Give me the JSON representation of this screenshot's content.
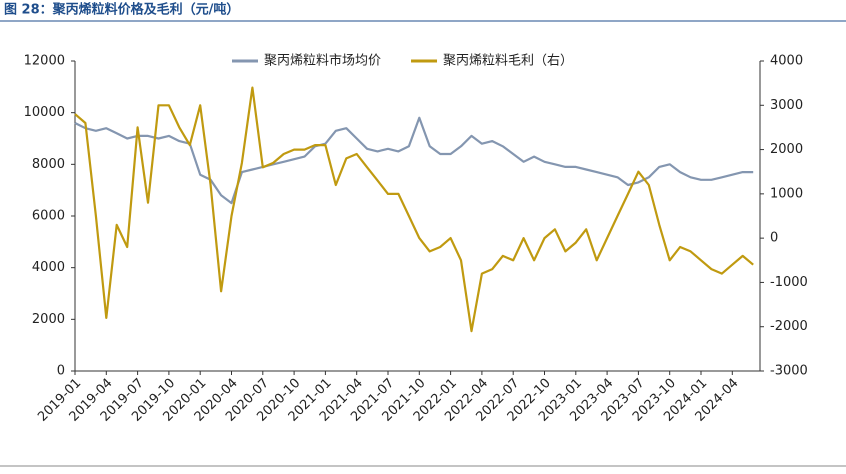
{
  "chart_data": {
    "type": "line",
    "title": "图 28：聚丙烯粒料价格及毛利（元/吨）",
    "x": [
      "2019-01",
      "2019-02",
      "2019-03",
      "2019-04",
      "2019-05",
      "2019-06",
      "2019-07",
      "2019-08",
      "2019-09",
      "2019-10",
      "2019-11",
      "2019-12",
      "2020-01",
      "2020-02",
      "2020-03",
      "2020-04",
      "2020-05",
      "2020-06",
      "2020-07",
      "2020-08",
      "2020-09",
      "2020-10",
      "2020-11",
      "2020-12",
      "2021-01",
      "2021-02",
      "2021-03",
      "2021-04",
      "2021-05",
      "2021-06",
      "2021-07",
      "2021-08",
      "2021-09",
      "2021-10",
      "2021-11",
      "2021-12",
      "2022-01",
      "2022-02",
      "2022-03",
      "2022-04",
      "2022-05",
      "2022-06",
      "2022-07",
      "2022-08",
      "2022-09",
      "2022-10",
      "2022-11",
      "2022-12",
      "2023-01",
      "2023-02",
      "2023-03",
      "2023-04",
      "2023-05",
      "2023-06",
      "2023-07",
      "2023-08",
      "2023-09",
      "2023-10",
      "2023-11",
      "2023-12",
      "2024-01",
      "2024-02",
      "2024-03",
      "2024-04",
      "2024-05",
      "2024-06"
    ],
    "xticks": [
      "2019-01",
      "2019-04",
      "2019-07",
      "2019-10",
      "2020-01",
      "2020-04",
      "2020-07",
      "2020-10",
      "2021-01",
      "2021-04",
      "2021-07",
      "2021-10",
      "2022-01",
      "2022-04",
      "2022-07",
      "2022-10",
      "2023-01",
      "2023-04",
      "2023-07",
      "2023-10",
      "2024-01",
      "2024-04"
    ],
    "series": [
      {
        "name": "聚丙烯粒料市场均价",
        "color": "#8496b0",
        "axis": "y",
        "values": [
          9600,
          9400,
          9300,
          9400,
          9200,
          9000,
          9100,
          9100,
          9000,
          9100,
          8900,
          8800,
          7600,
          7400,
          6800,
          6500,
          7700,
          7800,
          7900,
          8000,
          8100,
          8200,
          8300,
          8700,
          8800,
          9300,
          9400,
          9000,
          8600,
          8500,
          8600,
          8500,
          8700,
          9800,
          8700,
          8400,
          8400,
          8700,
          9100,
          8800,
          8900,
          8700,
          8400,
          8100,
          8300,
          8100,
          8000,
          7900,
          7900,
          7800,
          7700,
          7600,
          7500,
          7200,
          7300,
          7500,
          7900,
          8000,
          7700,
          7500,
          7400,
          7400,
          7500,
          7600,
          7700,
          7700
        ]
      },
      {
        "name": "聚丙烯粒料毛利（右）",
        "color": "#c09a10",
        "axis": "y2",
        "values": [
          2800,
          2600,
          500,
          -1800,
          300,
          -200,
          2500,
          800,
          3000,
          3000,
          2500,
          2100,
          3000,
          1200,
          -1200,
          500,
          1700,
          3400,
          1600,
          1700,
          1900,
          2000,
          2000,
          2100,
          2100,
          1200,
          1800,
          1900,
          1600,
          1300,
          1000,
          1000,
          500,
          0,
          -300,
          -200,
          0,
          -500,
          -2100,
          -800,
          -700,
          -400,
          -500,
          0,
          -500,
          0,
          200,
          -300,
          -100,
          200,
          -500,
          0,
          500,
          1000,
          1500,
          1200,
          300,
          -500,
          -200,
          -300,
          -500,
          -700,
          -800,
          -600,
          -400,
          -600
        ]
      }
    ],
    "ylim": [
      0,
      12000
    ],
    "yticks": [
      0,
      2000,
      4000,
      6000,
      8000,
      10000,
      12000
    ],
    "y2lim": [
      -3000,
      4000
    ],
    "y2ticks": [
      -3000,
      -2000,
      -1000,
      0,
      1000,
      2000,
      3000,
      4000
    ],
    "legend": "top"
  }
}
